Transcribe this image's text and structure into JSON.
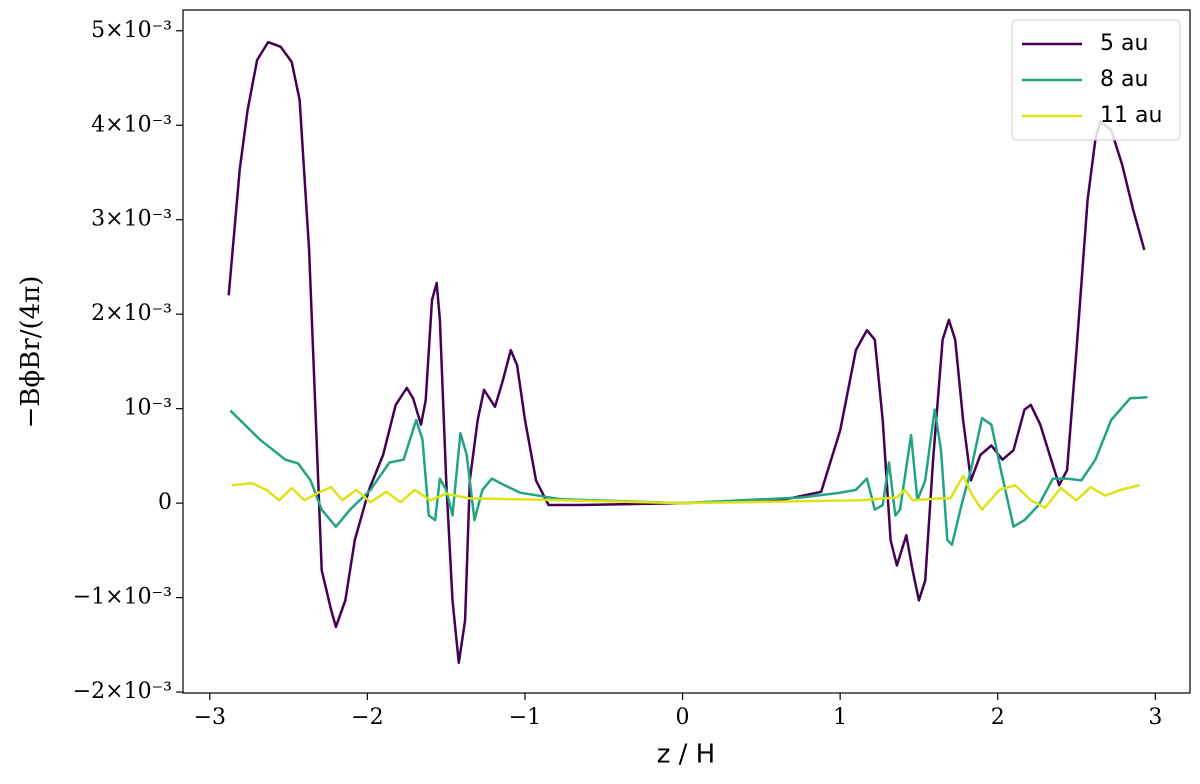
{
  "chart_data": {
    "type": "line",
    "xlabel": "z / H",
    "ylabel": "−BϕBr/(4π)",
    "xlim": [
      -3.17,
      3.22
    ],
    "ylim": [
      -0.00201,
      0.00522
    ],
    "xticks": [
      {
        "value": -3,
        "label": "−3"
      },
      {
        "value": -2,
        "label": "−2"
      },
      {
        "value": -1,
        "label": "−1"
      },
      0,
      1,
      2,
      3
    ],
    "yticks": [
      {
        "value": -0.002,
        "label": "−2×10⁻³"
      },
      {
        "value": -0.001,
        "label": "−1×10⁻³"
      },
      0,
      {
        "value": 0.001,
        "label": "10⁻³"
      },
      {
        "value": 0.002,
        "label": "2×10⁻³"
      },
      {
        "value": 0.003,
        "label": "3×10⁻³"
      },
      {
        "value": 0.004,
        "label": "4×10⁻³"
      },
      {
        "value": 0.005,
        "label": "5×10⁻³"
      }
    ],
    "legend": "upper right",
    "series": [
      {
        "name": "5 au",
        "color": "#440154",
        "x": [
          -2.88,
          -2.81,
          -2.76,
          -2.7,
          -2.63,
          -2.55,
          -2.48,
          -2.43,
          -2.37,
          -2.32,
          -2.29,
          -2.23,
          -2.2,
          -2.14,
          -2.08,
          -1.99,
          -1.9,
          -1.82,
          -1.75,
          -1.71,
          -1.66,
          -1.63,
          -1.59,
          -1.56,
          -1.54,
          -1.5,
          -1.46,
          -1.42,
          -1.38,
          -1.35,
          -1.3,
          -1.26,
          -1.19,
          -1.14,
          -1.09,
          -1.05,
          -1.0,
          -0.93,
          -0.85,
          -0.65,
          0,
          0.62,
          0.88,
          1.0,
          1.1,
          1.17,
          1.22,
          1.27,
          1.32,
          1.36,
          1.42,
          1.46,
          1.5,
          1.54,
          1.59,
          1.65,
          1.69,
          1.73,
          1.78,
          1.83,
          1.89,
          1.96,
          2.03,
          2.1,
          2.17,
          2.21,
          2.27,
          2.32,
          2.39,
          2.44,
          2.5,
          2.57,
          2.62,
          2.65,
          2.72,
          2.79,
          2.86,
          2.93
        ],
        "values": [
          0.0022,
          0.00353,
          0.00416,
          0.00469,
          0.00488,
          0.00483,
          0.00467,
          0.00427,
          0.00268,
          0.00056,
          -0.00071,
          -0.00113,
          -0.00131,
          -0.00103,
          -0.00039,
          0.00014,
          0.00051,
          0.00104,
          0.00122,
          0.00111,
          0.00083,
          0.00109,
          0.00215,
          0.00233,
          0.00194,
          0.00024,
          -0.00103,
          -0.00169,
          -0.00124,
          0.00024,
          0.00088,
          0.0012,
          0.00102,
          0.0013,
          0.00162,
          0.00146,
          0.00088,
          0.00024,
          -2e-05,
          -2e-05,
          0,
          3e-05,
          0.00012,
          0.00077,
          0.00162,
          0.00183,
          0.00173,
          0.00088,
          -0.00039,
          -0.00066,
          -0.00034,
          -0.00071,
          -0.00103,
          -0.00082,
          0.00046,
          0.00173,
          0.00194,
          0.00173,
          0.00088,
          0.00024,
          0.00051,
          0.00061,
          0.00046,
          0.00056,
          0.00099,
          0.00104,
          0.00083,
          0.00056,
          0.00019,
          0.00035,
          0.00162,
          0.00321,
          0.00385,
          0.00404,
          0.00395,
          0.00358,
          0.0031,
          0.00268
        ]
      },
      {
        "name": "8 au",
        "color": "#22a384",
        "x": [
          -2.87,
          -2.68,
          -2.52,
          -2.44,
          -2.36,
          -2.29,
          -2.2,
          -2.11,
          -1.98,
          -1.86,
          -1.77,
          -1.69,
          -1.65,
          -1.61,
          -1.57,
          -1.54,
          -1.5,
          -1.46,
          -1.41,
          -1.37,
          -1.32,
          -1.27,
          -1.21,
          -1.13,
          -1.03,
          -0.77,
          0,
          0.75,
          1.0,
          1.1,
          1.17,
          1.22,
          1.27,
          1.31,
          1.35,
          1.38,
          1.45,
          1.49,
          1.54,
          1.6,
          1.64,
          1.68,
          1.71,
          1.77,
          1.83,
          1.9,
          1.96,
          2.02,
          2.1,
          2.17,
          2.26,
          2.35,
          2.44,
          2.53,
          2.62,
          2.72,
          2.84,
          2.95
        ],
        "values": [
          0.00098,
          0.00067,
          0.00046,
          0.00042,
          0.00024,
          -7e-05,
          -0.00025,
          -7e-05,
          0.00014,
          0.00043,
          0.00046,
          0.00088,
          0.00067,
          -0.00013,
          -0.00018,
          0.00026,
          0.00014,
          -0.00013,
          0.00074,
          0.00051,
          -0.00018,
          0.00014,
          0.00026,
          0.00019,
          0.00011,
          4e-05,
          0,
          6e-05,
          0.00011,
          0.00014,
          0.00026,
          -7e-05,
          -2e-05,
          0.00043,
          -0.00013,
          -7e-05,
          0.00072,
          3e-05,
          0.00024,
          0.00099,
          0.00056,
          -0.00039,
          -0.00044,
          -2e-05,
          0.00035,
          0.0009,
          0.00083,
          0.00035,
          -0.00025,
          -0.00018,
          -2e-05,
          0.00026,
          0.00026,
          0.00024,
          0.00046,
          0.00088,
          0.00111,
          0.00112
        ]
      },
      {
        "name": "11 au",
        "color": "#dde318",
        "x": [
          -2.86,
          -2.73,
          -2.64,
          -2.56,
          -2.48,
          -2.4,
          -2.31,
          -2.23,
          -2.16,
          -2.07,
          -1.98,
          -1.88,
          -1.79,
          -1.7,
          -1.6,
          -1.5,
          -1.35,
          -1.03,
          0,
          1.13,
          1.36,
          1.41,
          1.46,
          1.64,
          1.7,
          1.78,
          1.84,
          1.9,
          2.01,
          2.11,
          2.21,
          2.3,
          2.4,
          2.5,
          2.59,
          2.68,
          2.78,
          2.9
        ],
        "values": [
          0.00019,
          0.00021,
          0.00014,
          3e-05,
          0.00016,
          3e-05,
          0.00011,
          0.00017,
          3e-05,
          0.00014,
          1e-05,
          0.00012,
          1e-05,
          0.00014,
          3e-05,
          0.0001,
          5e-05,
          4e-05,
          0,
          3e-05,
          6e-05,
          0.00014,
          3e-05,
          5e-05,
          5e-05,
          0.00029,
          8e-05,
          -7e-05,
          0.00014,
          0.00019,
          3e-05,
          -5e-05,
          0.00016,
          3e-05,
          0.00017,
          8e-05,
          0.00014,
          0.00019
        ]
      }
    ]
  }
}
